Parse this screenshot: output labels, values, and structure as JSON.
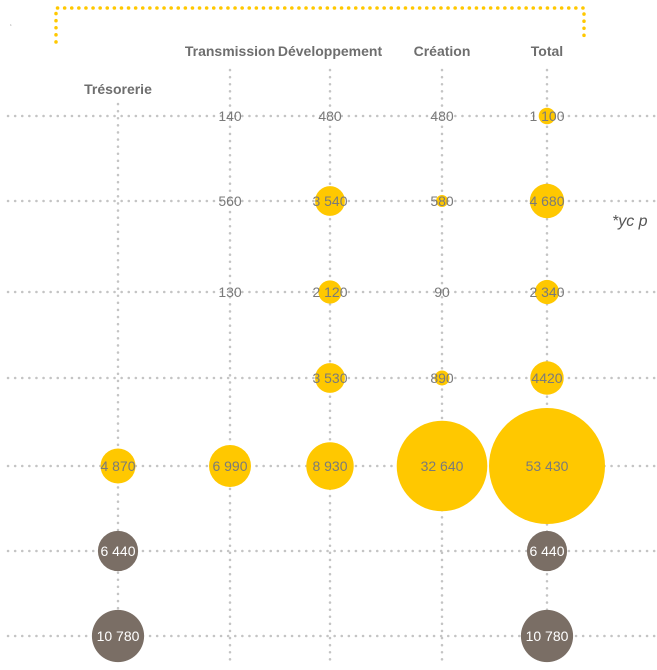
{
  "colors": {
    "positive": "#ffc800",
    "negative": "#7a6e65",
    "bracket": "#ffc800",
    "label_on_dark": "#ffffff"
  },
  "note": "*yc p",
  "chart_data": {
    "type": "bubble-matrix",
    "title": "",
    "columns": [
      "Trésorerie",
      "Transmission",
      "Développement",
      "Création",
      "Total"
    ],
    "rows": [
      {
        "group": "positive",
        "values": [
          null,
          140,
          480,
          480,
          1100
        ],
        "labels": [
          null,
          "140",
          "480",
          "480",
          "1 100"
        ]
      },
      {
        "group": "positive",
        "values": [
          null,
          560,
          3540,
          580,
          4680
        ],
        "labels": [
          null,
          "560",
          "3 540",
          "580",
          "4 680"
        ]
      },
      {
        "group": "positive",
        "values": [
          null,
          130,
          2120,
          90,
          2340
        ],
        "labels": [
          null,
          "130",
          "2 120",
          "90",
          "2 340"
        ]
      },
      {
        "group": "positive",
        "values": [
          null,
          null,
          3530,
          890,
          4420
        ],
        "labels": [
          null,
          null,
          "3 530",
          "890",
          "4420"
        ]
      },
      {
        "group": "positive",
        "values": [
          4870,
          6990,
          8930,
          32640,
          53430
        ],
        "labels": [
          "4 870",
          "6 990",
          "8 930",
          "32 640",
          "53 430"
        ]
      },
      {
        "group": "negative",
        "values": [
          6440,
          null,
          null,
          null,
          6440
        ],
        "labels": [
          "6 440",
          null,
          null,
          null,
          "6 440"
        ]
      },
      {
        "group": "negative",
        "values": [
          10780,
          null,
          null,
          null,
          10780
        ],
        "labels": [
          "10 780",
          null,
          null,
          null,
          "10 780"
        ]
      }
    ],
    "size_encoding": "area proportional to value",
    "grid": true,
    "legend": "none"
  }
}
